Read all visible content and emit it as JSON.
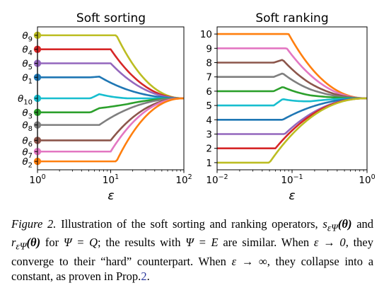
{
  "chart_data": [
    {
      "type": "line",
      "title": "Soft sorting",
      "xlabel": "ε",
      "xscale": "log",
      "xlim": [
        1,
        100
      ],
      "ylim": [
        0.4,
        10.6
      ],
      "xticks": [
        {
          "base": "10",
          "exp": "0",
          "value": 1
        },
        {
          "base": "10",
          "exp": "1",
          "value": 10
        },
        {
          "base": "10",
          "exp": "2",
          "value": 100
        }
      ],
      "ytick_labels": [
        {
          "name": "θ",
          "sub": "9",
          "value": 10
        },
        {
          "name": "θ",
          "sub": "4",
          "value": 9
        },
        {
          "name": "θ",
          "sub": "5",
          "value": 8
        },
        {
          "name": "θ",
          "sub": "1",
          "value": 7
        },
        {
          "name": "θ",
          "sub": "10",
          "value": 5.5
        },
        {
          "name": "θ",
          "sub": "3",
          "value": 4.5
        },
        {
          "name": "θ",
          "sub": "8",
          "value": 3.6
        },
        {
          "name": "θ",
          "sub": "6",
          "value": 2.5
        },
        {
          "name": "θ",
          "sub": "7",
          "value": 1.7
        },
        {
          "name": "θ",
          "sub": "2",
          "value": 1
        }
      ],
      "converge_value": 5.5,
      "series": [
        {
          "color": "#bcbd22",
          "start": 10,
          "break": 12,
          "bump": 0
        },
        {
          "color": "#d62728",
          "start": 9,
          "break": 10,
          "bump": 0
        },
        {
          "color": "#9467bd",
          "start": 8,
          "break": 10,
          "bump": 0
        },
        {
          "color": "#1f77b4",
          "start": 7,
          "break": 7,
          "bump": 0.05
        },
        {
          "color": "#17becf",
          "start": 5.5,
          "break": 7,
          "bump": 0.3
        },
        {
          "color": "#2ca02c",
          "start": 4.5,
          "break": 7,
          "bump": 0.3
        },
        {
          "color": "#7f7f7f",
          "start": 3.6,
          "break": 7,
          "bump": 0
        },
        {
          "color": "#8c564b",
          "start": 2.5,
          "break": 10,
          "bump": 0
        },
        {
          "color": "#e377c2",
          "start": 1.7,
          "break": 10,
          "bump": 0
        },
        {
          "color": "#ff7f0e",
          "start": 1,
          "break": 12,
          "bump": 0
        }
      ]
    },
    {
      "type": "line",
      "title": "Soft ranking",
      "xlabel": "ε",
      "xscale": "log",
      "xlim": [
        0.01,
        1
      ],
      "ylim": [
        0.5,
        10.5
      ],
      "xticks": [
        {
          "base": "10",
          "exp": "−2",
          "value": 0.01
        },
        {
          "base": "10",
          "exp": "−1",
          "value": 0.1
        },
        {
          "base": "10",
          "exp": "0",
          "value": 1
        }
      ],
      "yticks": [
        1,
        2,
        3,
        4,
        5,
        6,
        7,
        8,
        9,
        10
      ],
      "converge_value": 5.5,
      "series": [
        {
          "color": "#ff7f0e",
          "start": 10,
          "break": 0.09,
          "bump": 0
        },
        {
          "color": "#e377c2",
          "start": 9,
          "break": 0.085,
          "bump": 0
        },
        {
          "color": "#8c564b",
          "start": 8,
          "break": 0.075,
          "bump": 0.2
        },
        {
          "color": "#7f7f7f",
          "start": 7,
          "break": 0.075,
          "bump": 0.25
        },
        {
          "color": "#2ca02c",
          "start": 6,
          "break": 0.075,
          "bump": 0.3
        },
        {
          "color": "#17becf",
          "start": 5,
          "break": 0.075,
          "bump": 0.45
        },
        {
          "color": "#1f77b4",
          "start": 4,
          "break": 0.075,
          "bump": 0
        },
        {
          "color": "#9467bd",
          "start": 3,
          "break": 0.08,
          "bump": 0
        },
        {
          "color": "#d62728",
          "start": 2,
          "break": 0.06,
          "bump": 0
        },
        {
          "color": "#bcbd22",
          "start": 1,
          "break": 0.05,
          "bump": 0
        }
      ]
    }
  ],
  "caption": {
    "label": "Figure 2.",
    "t1": " Illustration of the soft sorting and ranking operators, ",
    "m1": "s",
    "m1sub": "εΨ",
    "m1arg": "(θ)",
    "t2": " and ",
    "m2": "r",
    "m2sub": "εΨ",
    "m2arg": "(θ)",
    "t3": " for ",
    "m3": "Ψ = Q",
    "t4": "; the results with ",
    "m4": "Ψ = E",
    "t5": " are similar. When ",
    "m5": "ε → 0",
    "t6": ", they converge to their “hard” counterpart. When ",
    "m6": "ε → ∞",
    "t7": ", they collapse into a constant, as proven in Prop.",
    "ref": "2",
    "t8": "."
  }
}
